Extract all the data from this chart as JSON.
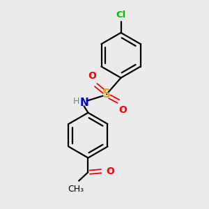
{
  "bg_color": "#ebebeb",
  "atom_colors": {
    "C": "#000000",
    "H": "#708090",
    "N": "#0000CD",
    "O": "#FF0000",
    "S": "#DAA520",
    "Cl": "#00BB00"
  },
  "bond_color": "#000000",
  "figsize": [
    3.0,
    3.0
  ],
  "dpi": 100,
  "xlim": [
    0,
    10
  ],
  "ylim": [
    0,
    10
  ]
}
